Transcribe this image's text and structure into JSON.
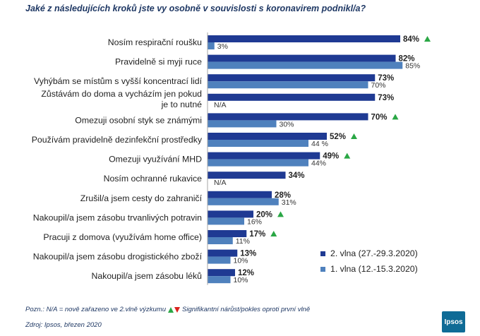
{
  "title": "Jaké z následujících kroků jste vy osobně v souvislosti  s koronavirem podnikl/a?",
  "colors": {
    "wave2": "#1f3a93",
    "wave1": "#4f81bd",
    "up": "#2aa745",
    "down": "#d9231d",
    "title": "#1f3864"
  },
  "legend": {
    "wave2": "2. vlna (27.-29.3.2020)",
    "wave1": "1. vlna (12.-15.3.2020)"
  },
  "note": {
    "prefix": "Pozn.: N/A = nově zařazeno ve 2.vlně výzkumu",
    "suffix": "Signifikantní nárůst/pokles oproti první vlně"
  },
  "source": "Zdroj: Ipsos, březen 2020",
  "logo_text": "Ipsos",
  "chart_data": {
    "type": "bar",
    "orientation": "horizontal",
    "xlim": [
      0,
      100
    ],
    "significance_marker": "up",
    "categories": [
      [
        "Nosím respirační roušku"
      ],
      [
        "Pravidelně si myji ruce"
      ],
      [
        "Vyhýbám se místům s vyšší koncentrací lidí"
      ],
      [
        "Zůstávám do doma a vycházím jen pokud",
        "je to nutné"
      ],
      [
        "Omezuji osobní styk se známými"
      ],
      [
        "Používám pravidelně dezinfekční prostředky"
      ],
      [
        "Omezuji využívání MHD"
      ],
      [
        "Nosím ochranné rukavice"
      ],
      [
        "Zrušil/a jsem cesty do zahraničí"
      ],
      [
        "Nakoupil/a jsem zásobu trvanlivých potravin"
      ],
      [
        "Pracuji z domova (využívám home office)"
      ],
      [
        "Nakoupil/a jsem zásobu drogistického zboží"
      ],
      [
        "Nakoupil/a jsem zásobu léků"
      ]
    ],
    "series": [
      {
        "name": "2. vlna (27.-29.3.2020)",
        "values": [
          84,
          82,
          73,
          73,
          70,
          52,
          49,
          34,
          28,
          20,
          17,
          13,
          12
        ],
        "labels": [
          "84%",
          "82%",
          "73%",
          "73%",
          "70%",
          "52%",
          "49%",
          "34%",
          "28%",
          "20%",
          "17%",
          "13%",
          "12%"
        ],
        "significant_up": [
          true,
          false,
          false,
          false,
          true,
          true,
          true,
          false,
          false,
          true,
          true,
          false,
          false
        ]
      },
      {
        "name": "1. vlna (12.-15.3.2020)",
        "values": [
          3,
          85,
          70,
          null,
          30,
          44,
          44,
          null,
          31,
          16,
          11,
          10,
          10
        ],
        "labels": [
          "3%",
          "85%",
          "70%",
          "N/A",
          "30%",
          "44 %",
          "44%",
          "N/A",
          "31%",
          "16%",
          "11%",
          "10%",
          "10%"
        ]
      }
    ]
  }
}
